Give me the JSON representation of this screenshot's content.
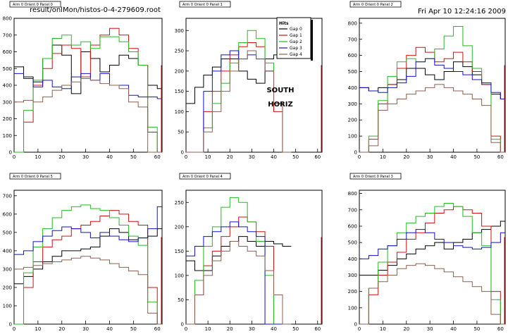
{
  "header": {
    "file_title": "result/onlMon/histos-0-4-279609.root",
    "timestamp": "Fri Apr 10 12:24:16 2009"
  },
  "legend": {
    "title": "Hits",
    "entries": [
      "Gap 0",
      "Gap 1",
      "Gap 2",
      "Gap 3",
      "Gap 4"
    ]
  },
  "annotation": {
    "line1": "SOUTH",
    "line2": "HORIZ"
  },
  "colors": {
    "gap0": "#000000",
    "gap1": "#d01010",
    "gap2": "#22bb22",
    "gap3": "#1010c8",
    "gap4": "#8a6050",
    "frame": "#000000"
  },
  "chart_data": [
    {
      "type": "line",
      "title": "Arm 0 Orient 0 Panel 0",
      "xlim": [
        0,
        62
      ],
      "ylim": [
        0,
        800
      ],
      "xticks": [
        0,
        10,
        20,
        30,
        40,
        50,
        60
      ],
      "yticks": [
        0,
        100,
        200,
        300,
        400,
        500,
        600,
        700,
        800
      ],
      "x": [
        0,
        4,
        8,
        12,
        16,
        20,
        24,
        28,
        32,
        36,
        40,
        44,
        48,
        52,
        56,
        60
      ],
      "series": [
        {
          "name": "Gap 0",
          "values": [
            510,
            450,
            420,
            560,
            640,
            580,
            350,
            600,
            560,
            480,
            520,
            580,
            560,
            520,
            400,
            380
          ]
        },
        {
          "name": "Gap 1",
          "values": [
            0,
            180,
            400,
            500,
            590,
            640,
            620,
            450,
            640,
            700,
            740,
            700,
            620,
            520,
            120,
            0
          ]
        },
        {
          "name": "Gap 2",
          "values": [
            0,
            250,
            430,
            560,
            680,
            700,
            640,
            660,
            620,
            690,
            690,
            660,
            600,
            520,
            150,
            0
          ]
        },
        {
          "name": "Gap 3",
          "values": [
            470,
            440,
            390,
            430,
            390,
            380,
            450,
            470,
            430,
            470,
            400,
            400,
            340,
            330,
            330,
            320
          ]
        },
        {
          "name": "Gap 4",
          "values": [
            300,
            310,
            300,
            330,
            370,
            400,
            420,
            440,
            430,
            410,
            400,
            380,
            300,
            270,
            0,
            0
          ]
        }
      ]
    },
    {
      "type": "line",
      "title": "Arm 0 Orient 0 Panel 1",
      "xlim": [
        0,
        62
      ],
      "ylim": [
        0,
        330
      ],
      "xticks": [
        0,
        10,
        20,
        30,
        40,
        50,
        60
      ],
      "yticks": [
        0,
        50,
        100,
        150,
        200,
        250,
        300
      ],
      "x": [
        0,
        4,
        8,
        12,
        16,
        20,
        24,
        28,
        32,
        36,
        40,
        44
      ],
      "series": [
        {
          "name": "Gap 0",
          "values": [
            120,
            160,
            190,
            210,
            230,
            230,
            200,
            180,
            170,
            230,
            240,
            260
          ]
        },
        {
          "name": "Gap 1",
          "values": [
            0,
            0,
            100,
            150,
            200,
            240,
            260,
            270,
            260,
            200,
            100,
            0
          ]
        },
        {
          "name": "Gap 2",
          "values": [
            0,
            0,
            60,
            120,
            170,
            220,
            270,
            300,
            280,
            220,
            120,
            0
          ]
        },
        {
          "name": "Gap 3",
          "values": [
            0,
            0,
            150,
            200,
            240,
            250,
            230,
            240,
            230,
            200,
            120,
            0
          ]
        },
        {
          "name": "Gap 4",
          "values": [
            0,
            0,
            50,
            100,
            150,
            200,
            230,
            250,
            230,
            200,
            120,
            0
          ]
        }
      ]
    },
    {
      "type": "line",
      "title": "Arm 0 Orient 0 Panel 2",
      "xlim": [
        0,
        62
      ],
      "ylim": [
        0,
        830
      ],
      "xticks": [
        0,
        10,
        20,
        30,
        40,
        50,
        60
      ],
      "yticks": [
        0,
        100,
        200,
        300,
        400,
        500,
        600,
        700,
        800
      ],
      "x": [
        0,
        4,
        8,
        12,
        16,
        20,
        24,
        28,
        32,
        36,
        40,
        44,
        48,
        52,
        56,
        60
      ],
      "series": [
        {
          "name": "Gap 0",
          "values": [
            400,
            380,
            400,
            420,
            450,
            520,
            520,
            480,
            450,
            500,
            560,
            530,
            480,
            420,
            360,
            330
          ]
        },
        {
          "name": "Gap 1",
          "values": [
            0,
            80,
            300,
            420,
            520,
            600,
            650,
            620,
            560,
            580,
            620,
            560,
            500,
            420,
            100,
            0
          ]
        },
        {
          "name": "Gap 2",
          "values": [
            0,
            100,
            320,
            470,
            560,
            580,
            560,
            580,
            640,
            720,
            780,
            660,
            520,
            430,
            80,
            0
          ]
        },
        {
          "name": "Gap 3",
          "values": [
            400,
            380,
            370,
            400,
            430,
            470,
            560,
            580,
            540,
            520,
            500,
            480,
            450,
            430,
            370,
            330
          ]
        },
        {
          "name": "Gap 4",
          "values": [
            0,
            40,
            260,
            300,
            330,
            360,
            380,
            400,
            420,
            400,
            380,
            360,
            330,
            290,
            60,
            0
          ]
        }
      ]
    },
    {
      "type": "line",
      "title": "Arm 0 Orient 0 Panel 5",
      "xlim": [
        0,
        62
      ],
      "ylim": [
        0,
        730
      ],
      "xticks": [
        0,
        10,
        20,
        30,
        40,
        50,
        60
      ],
      "yticks": [
        0,
        100,
        200,
        300,
        400,
        500,
        600,
        700
      ],
      "x": [
        0,
        4,
        8,
        12,
        16,
        20,
        24,
        28,
        32,
        36,
        40,
        44,
        48,
        52,
        56,
        60
      ],
      "series": [
        {
          "name": "Gap 0",
          "values": [
            220,
            260,
            300,
            340,
            370,
            400,
            400,
            410,
            420,
            480,
            520,
            500,
            460,
            470,
            480,
            520
          ]
        },
        {
          "name": "Gap 1",
          "values": [
            0,
            200,
            340,
            420,
            460,
            480,
            520,
            540,
            560,
            590,
            620,
            600,
            560,
            540,
            200,
            0
          ]
        },
        {
          "name": "Gap 2",
          "values": [
            0,
            280,
            420,
            520,
            580,
            620,
            640,
            650,
            630,
            620,
            580,
            540,
            480,
            430,
            120,
            0
          ]
        },
        {
          "name": "Gap 3",
          "values": [
            380,
            400,
            450,
            480,
            510,
            530,
            520,
            500,
            470,
            500,
            480,
            460,
            450,
            470,
            520,
            640
          ]
        },
        {
          "name": "Gap 4",
          "values": [
            300,
            310,
            320,
            330,
            340,
            350,
            360,
            370,
            360,
            350,
            330,
            310,
            290,
            270,
            60,
            0
          ]
        }
      ]
    },
    {
      "type": "line",
      "title": "Arm 0 Orient 0 Panel 4",
      "xlim": [
        0,
        62
      ],
      "ylim": [
        0,
        275
      ],
      "xticks": [
        0,
        10,
        20,
        30,
        40,
        50,
        60
      ],
      "yticks": [
        0,
        50,
        100,
        150,
        200,
        250
      ],
      "x": [
        0,
        4,
        8,
        12,
        16,
        20,
        24,
        28,
        32,
        36,
        40,
        44
      ],
      "series": [
        {
          "name": "Gap 0",
          "values": [
            130,
            110,
            110,
            140,
            160,
            170,
            180,
            170,
            160,
            170,
            165,
            160
          ]
        },
        {
          "name": "Gap 1",
          "values": [
            0,
            60,
            120,
            150,
            180,
            200,
            220,
            210,
            190,
            160,
            0,
            0
          ]
        },
        {
          "name": "Gap 2",
          "values": [
            0,
            90,
            160,
            200,
            240,
            260,
            250,
            210,
            170,
            100,
            0,
            0
          ]
        },
        {
          "name": "Gap 3",
          "values": [
            140,
            160,
            180,
            190,
            200,
            210,
            200,
            190,
            180,
            0,
            0,
            0
          ]
        },
        {
          "name": "Gap 4",
          "values": [
            0,
            60,
            100,
            130,
            150,
            170,
            160,
            150,
            140,
            110,
            60,
            0
          ]
        }
      ]
    },
    {
      "type": "line",
      "title": "Arm 0 Orient 0 Panel 3",
      "xlim": [
        0,
        62
      ],
      "ylim": [
        0,
        820
      ],
      "xticks": [
        0,
        10,
        20,
        30,
        40,
        50,
        60
      ],
      "yticks": [
        0,
        100,
        200,
        300,
        400,
        500,
        600,
        700,
        800
      ],
      "x": [
        0,
        4,
        8,
        12,
        16,
        20,
        24,
        28,
        32,
        36,
        40,
        44,
        48,
        52,
        56,
        60
      ],
      "series": [
        {
          "name": "Gap 0",
          "values": [
            300,
            300,
            330,
            360,
            400,
            430,
            460,
            480,
            500,
            460,
            500,
            520,
            560,
            580,
            600,
            630
          ]
        },
        {
          "name": "Gap 1",
          "values": [
            0,
            180,
            300,
            380,
            440,
            520,
            560,
            620,
            680,
            700,
            720,
            700,
            680,
            600,
            200,
            0
          ]
        },
        {
          "name": "Gap 2",
          "values": [
            0,
            220,
            380,
            480,
            560,
            620,
            660,
            680,
            720,
            740,
            720,
            660,
            560,
            480,
            150,
            0
          ]
        },
        {
          "name": "Gap 3",
          "values": [
            400,
            420,
            460,
            480,
            520,
            560,
            580,
            560,
            520,
            500,
            480,
            470,
            460,
            470,
            500,
            560
          ]
        },
        {
          "name": "Gap 4",
          "values": [
            0,
            220,
            260,
            300,
            340,
            360,
            370,
            360,
            340,
            320,
            290,
            260,
            230,
            200,
            60,
            0
          ]
        }
      ]
    }
  ]
}
